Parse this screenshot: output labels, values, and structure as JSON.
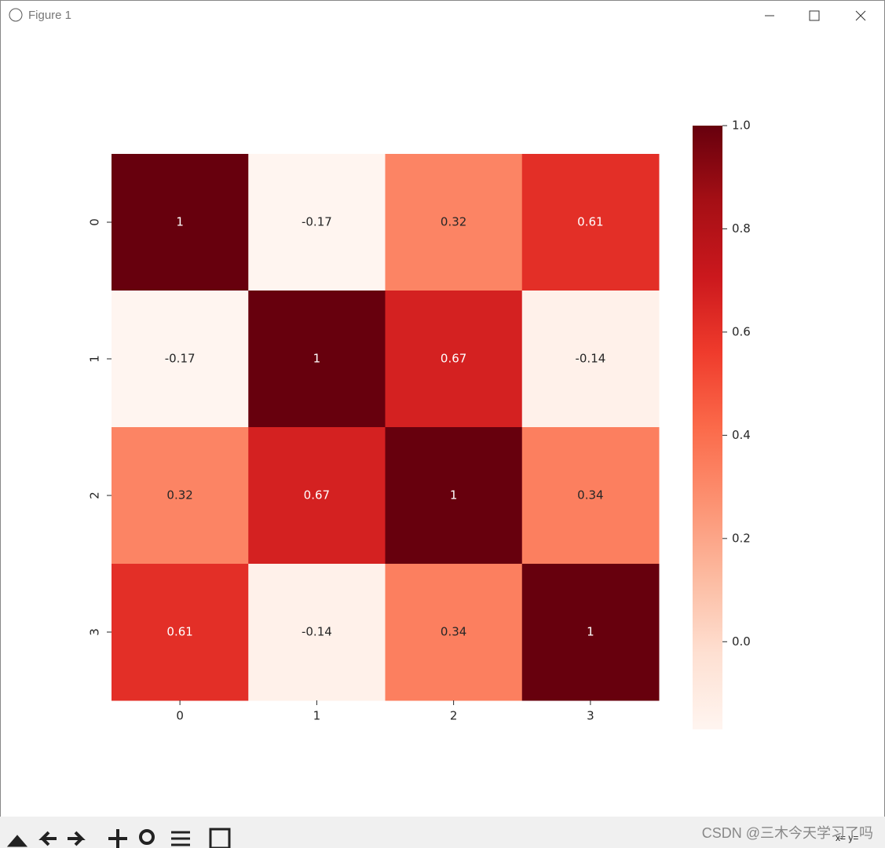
{
  "window": {
    "title": "Figure 1",
    "status": "x= y=",
    "watermark": "CSDN @三木今天学习了吗"
  },
  "chart_data": {
    "type": "heatmap",
    "x_categories": [
      "0",
      "1",
      "2",
      "3"
    ],
    "y_categories": [
      "0",
      "1",
      "2",
      "3"
    ],
    "values": [
      [
        1,
        -0.17,
        0.32,
        0.61
      ],
      [
        -0.17,
        1,
        0.67,
        -0.14
      ],
      [
        0.32,
        0.67,
        1,
        0.34
      ],
      [
        0.61,
        -0.14,
        0.34,
        1
      ]
    ],
    "colormap": "Reds",
    "clim": [
      -0.17,
      1
    ],
    "colorbar_ticks": [
      {
        "value": 0,
        "label": "0.0"
      },
      0.2,
      0.4,
      0.6,
      0.8,
      {
        "value": 1,
        "label": "1.0"
      }
    ]
  }
}
